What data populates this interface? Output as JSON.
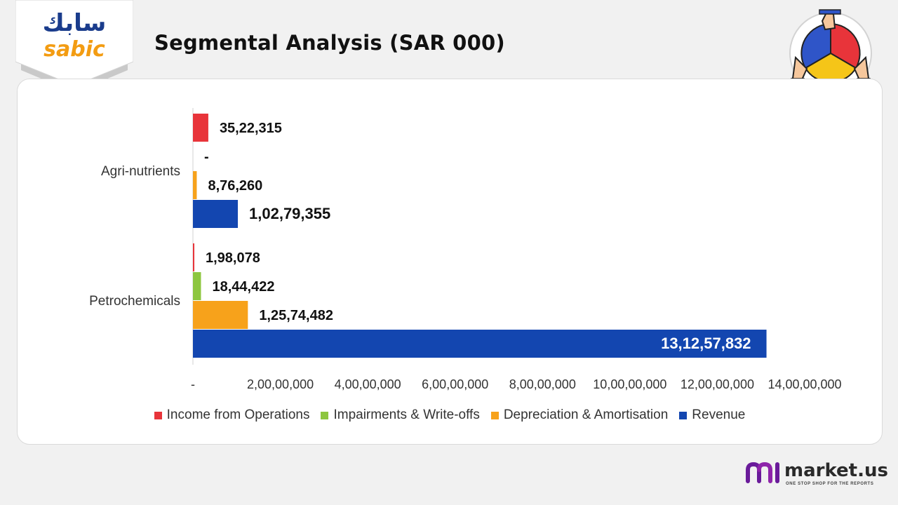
{
  "header": {
    "title": "Segmental Analysis (SAR 000)"
  },
  "logo": {
    "arabic_text": "سابك",
    "latin_text": "sabic"
  },
  "footer": {
    "brand": "market.us",
    "tagline": "ONE STOP SHOP FOR THE REPORTS"
  },
  "colors": {
    "income": "#e8343a",
    "impairments": "#8dc63f",
    "depreciation": "#f7a21b",
    "revenue": "#1346b0",
    "logo_blue": "#1a3c8c",
    "logo_orange": "#f39c12",
    "brand_purple": "#6a1b9a"
  },
  "chart_data": {
    "type": "bar",
    "orientation": "horizontal",
    "title": "Segmental Analysis (SAR 000)",
    "categories": [
      "Agri-nutrients",
      "Petrochemicals"
    ],
    "series": [
      {
        "name": "Income from Operations",
        "key": "income",
        "values": [
          3522315,
          198078
        ],
        "labels": [
          "35,22,315",
          "1,98,078"
        ]
      },
      {
        "name": "Impairments & Write-offs",
        "key": "impairments",
        "values": [
          0,
          1844422
        ],
        "labels": [
          "-",
          "18,44,422"
        ]
      },
      {
        "name": "Depreciation & Amortisation",
        "key": "depreciation",
        "values": [
          876260,
          12574482
        ],
        "labels": [
          "8,76,260",
          "1,25,74,482"
        ]
      },
      {
        "name": "Revenue",
        "key": "revenue",
        "values": [
          10279355,
          131257832
        ],
        "labels": [
          "1,02,79,355",
          "13,12,57,832"
        ]
      }
    ],
    "xlim": [
      0,
      140000000
    ],
    "x_ticks": [
      {
        "value": 0,
        "label": "-"
      },
      {
        "value": 20000000,
        "label": "2,00,00,000"
      },
      {
        "value": 40000000,
        "label": "4,00,00,000"
      },
      {
        "value": 60000000,
        "label": "6,00,00,000"
      },
      {
        "value": 80000000,
        "label": "8,00,00,000"
      },
      {
        "value": 100000000,
        "label": "10,00,00,000"
      },
      {
        "value": 120000000,
        "label": "12,00,00,000"
      },
      {
        "value": 140000000,
        "label": "14,00,00,000"
      }
    ],
    "legend_position": "bottom",
    "grid": false
  }
}
